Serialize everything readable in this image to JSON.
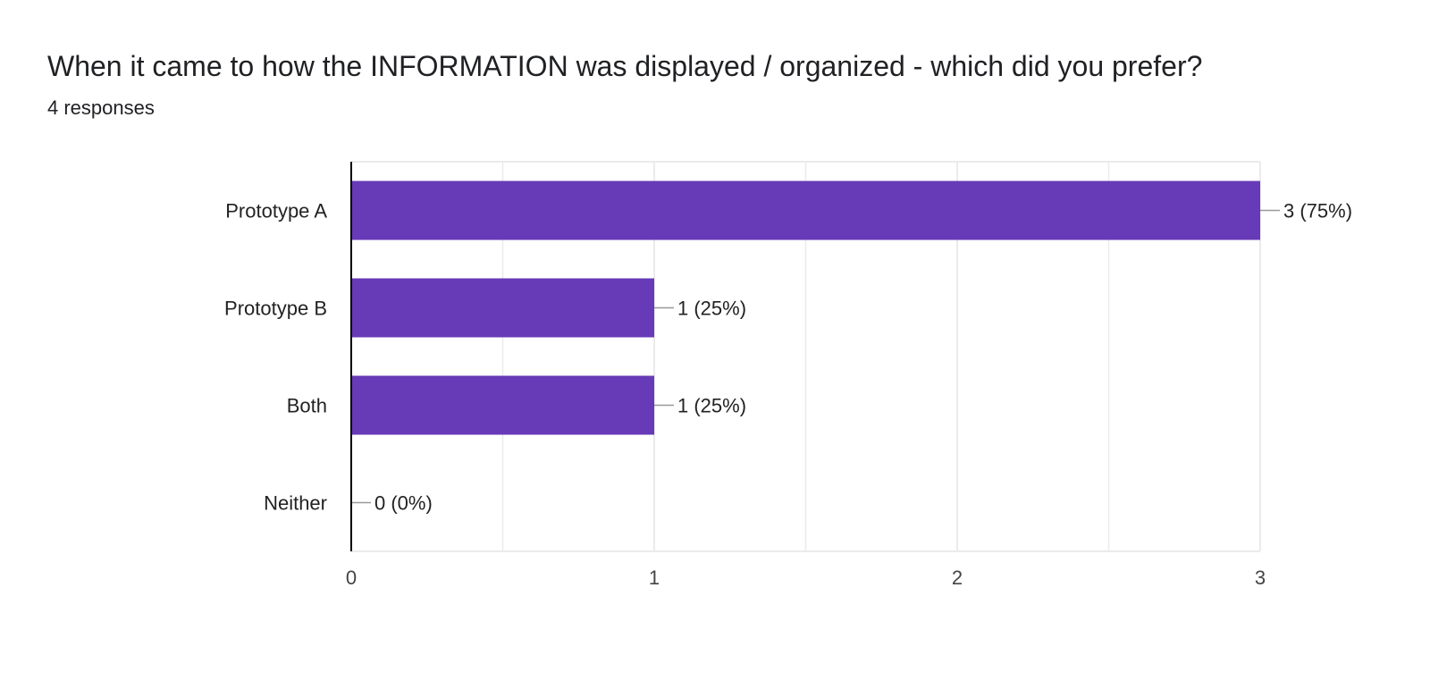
{
  "title": "When it came to how the INFORMATION was displayed / organized - which did you prefer?",
  "subtitle": "4 responses",
  "colors": {
    "bar": "#673ab7",
    "grid": "#ebebeb",
    "axis": "#000000",
    "leader": "#999999"
  },
  "chart_data": {
    "type": "bar",
    "orientation": "horizontal",
    "categories": [
      "Prototype A",
      "Prototype B",
      "Both",
      "Neither"
    ],
    "values": [
      3,
      1,
      1,
      0
    ],
    "value_labels": [
      "3 (75%)",
      "1 (25%)",
      "1 (25%)",
      "0 (0%)"
    ],
    "x_ticks": [
      0,
      1,
      2,
      3
    ],
    "xlim": [
      0,
      3
    ],
    "grid": true
  }
}
